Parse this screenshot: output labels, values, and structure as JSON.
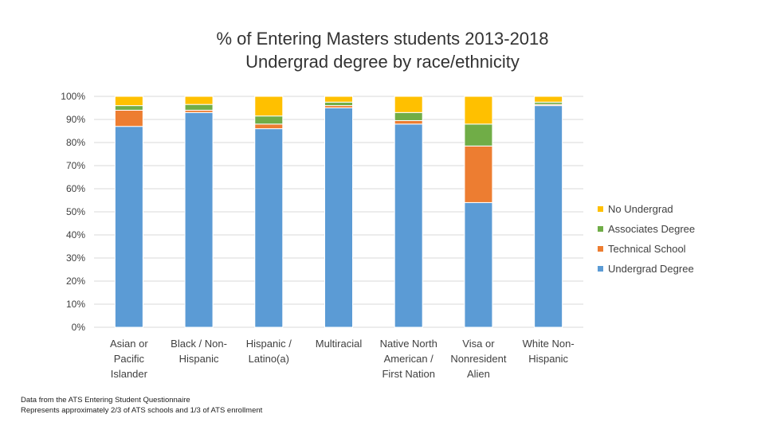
{
  "chart_data": {
    "type": "bar",
    "stacked": true,
    "title_line1": "% of Entering Masters students 2013-2018",
    "title_line2": "Undergrad degree by race/ethnicity",
    "categories": [
      [
        "Asian or",
        "Pacific",
        "Islander"
      ],
      [
        "Black / Non-",
        "Hispanic"
      ],
      [
        "Hispanic /",
        "Latino(a)"
      ],
      [
        "Multiracial"
      ],
      [
        "Native North",
        "American /",
        "First Nation"
      ],
      [
        "Visa or",
        "Nonresident",
        "Alien"
      ],
      [
        "White Non-",
        "Hispanic"
      ]
    ],
    "series": [
      {
        "name": "Undergrad Degree",
        "color": "#5B9BD5",
        "values": [
          87,
          93,
          86,
          95,
          88,
          54,
          96
        ]
      },
      {
        "name": "Technical School",
        "color": "#ED7D31",
        "values": [
          7,
          1,
          2,
          1,
          1.5,
          24.5,
          0.5
        ]
      },
      {
        "name": "Associates Degree",
        "color": "#70AD47",
        "values": [
          2,
          2.5,
          3.5,
          1.5,
          3.5,
          9.5,
          1
        ]
      },
      {
        "name": "No Undergrad",
        "color": "#FFC000",
        "values": [
          4,
          3.5,
          8.5,
          2.5,
          7,
          12,
          2.5
        ]
      }
    ],
    "ylim": [
      0,
      100
    ],
    "yticks": [
      "0%",
      "10%",
      "20%",
      "30%",
      "40%",
      "50%",
      "60%",
      "70%",
      "80%",
      "90%",
      "100%"
    ],
    "grid": true,
    "legend_position": "right"
  },
  "legend": [
    {
      "label": "No Undergrad",
      "color": "#FFC000"
    },
    {
      "label": "Associates Degree",
      "color": "#70AD47"
    },
    {
      "label": "Technical School",
      "color": "#ED7D31"
    },
    {
      "label": "Undergrad Degree",
      "color": "#5B9BD5"
    }
  ],
  "footnote": {
    "line1": "Data from the ATS Entering Student Questionnaire",
    "line2": "Represents approximately 2/3 of ATS schools and 1/3 of ATS enrollment"
  }
}
